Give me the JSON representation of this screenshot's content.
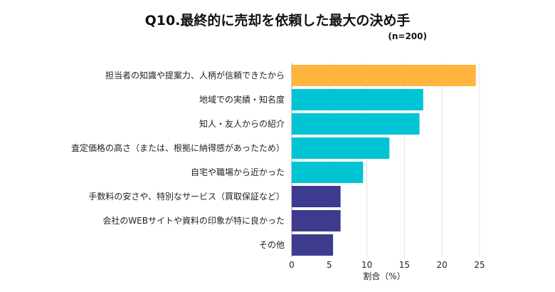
{
  "chart_data": {
    "type": "bar",
    "orientation": "horizontal",
    "title": "Q10.最終的に売却を依頼した最大の決め手",
    "subtitle": "(n=200)",
    "xlabel": "割合（%）",
    "categories": [
      "担当者の知識や提案力、人柄が信頼できたから",
      "地域での実績・知名度",
      "知人・友人からの紹介",
      "査定価格の高さ（または、根拠に納得感があったため）",
      "自宅や職場から近かった",
      "手数料の安さや、特別なサービス（買取保証など）",
      "会社のWEBサイトや資料の印象が特に良かった",
      "その他"
    ],
    "values": [
      24.5,
      17.5,
      17.0,
      13.0,
      9.5,
      6.5,
      6.5,
      5.5
    ],
    "colors": [
      "#FFB53D",
      "#00C4D4",
      "#00C4D4",
      "#00C4D4",
      "#00C4D4",
      "#3E3A8E",
      "#3E3A8E",
      "#3E3A8E"
    ],
    "xlim": [
      0,
      25
    ],
    "xticks": [
      0,
      5,
      10,
      15,
      20,
      25
    ],
    "grid": true
  }
}
